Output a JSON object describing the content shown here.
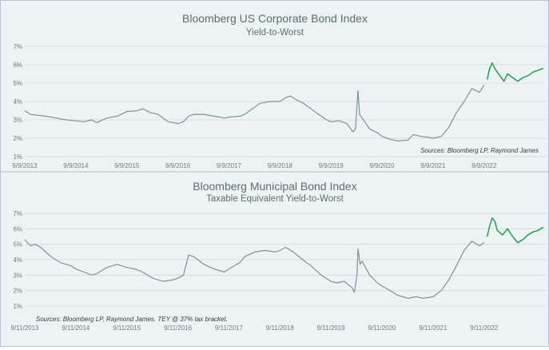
{
  "chart_data": [
    {
      "type": "line",
      "title": "Bloomberg US Corporate Bond Index",
      "subtitle": "Yield-to-Worst",
      "source": "Sources: Bloomberg LP, Raymond James",
      "y_ticks": [
        "1%",
        "2%",
        "3%",
        "4%",
        "5%",
        "6%",
        "7%"
      ],
      "ylim": [
        1,
        7
      ],
      "x_tick_labels": [
        "9/9/2013",
        "9/9/2014",
        "9/9/2015",
        "9/9/2016",
        "9/9/2017",
        "9/9/2018",
        "9/9/2019",
        "9/9/2020",
        "9/9/2021",
        "9/9/2022"
      ],
      "xlim": [
        2013.69,
        2023.9
      ],
      "grid": true,
      "colors": {
        "main": "#7b9498",
        "recent": "#16a34a"
      },
      "series": [
        {
          "values": [
            [
              2013.69,
              3.5
            ],
            [
              2013.8,
              3.3
            ],
            [
              2013.95,
              3.25
            ],
            [
              2014.1,
              3.2
            ],
            [
              2014.3,
              3.1
            ],
            [
              2014.5,
              3.0
            ],
            [
              2014.69,
              2.95
            ],
            [
              2014.85,
              2.9
            ],
            [
              2015.0,
              3.0
            ],
            [
              2015.1,
              2.85
            ],
            [
              2015.3,
              3.1
            ],
            [
              2015.5,
              3.2
            ],
            [
              2015.69,
              3.45
            ],
            [
              2015.9,
              3.5
            ],
            [
              2016.0,
              3.6
            ],
            [
              2016.15,
              3.4
            ],
            [
              2016.3,
              3.3
            ],
            [
              2016.5,
              2.9
            ],
            [
              2016.69,
              2.8
            ],
            [
              2016.8,
              2.9
            ],
            [
              2016.9,
              3.2
            ],
            [
              2017.0,
              3.3
            ],
            [
              2017.2,
              3.3
            ],
            [
              2017.4,
              3.2
            ],
            [
              2017.6,
              3.1
            ],
            [
              2017.69,
              3.15
            ],
            [
              2017.9,
              3.2
            ],
            [
              2018.0,
              3.3
            ],
            [
              2018.15,
              3.6
            ],
            [
              2018.3,
              3.9
            ],
            [
              2018.5,
              4.0
            ],
            [
              2018.69,
              4.0
            ],
            [
              2018.8,
              4.2
            ],
            [
              2018.9,
              4.3
            ],
            [
              2019.0,
              4.1
            ],
            [
              2019.15,
              3.9
            ],
            [
              2019.3,
              3.6
            ],
            [
              2019.45,
              3.3
            ],
            [
              2019.6,
              3.0
            ],
            [
              2019.69,
              2.9
            ],
            [
              2019.85,
              2.95
            ],
            [
              2020.0,
              2.8
            ],
            [
              2020.12,
              2.35
            ],
            [
              2020.17,
              2.5
            ],
            [
              2020.22,
              4.6
            ],
            [
              2020.25,
              3.3
            ],
            [
              2020.35,
              2.9
            ],
            [
              2020.45,
              2.5
            ],
            [
              2020.6,
              2.3
            ],
            [
              2020.69,
              2.1
            ],
            [
              2020.85,
              1.95
            ],
            [
              2021.0,
              1.85
            ],
            [
              2021.2,
              1.9
            ],
            [
              2021.3,
              2.2
            ],
            [
              2021.45,
              2.1
            ],
            [
              2021.6,
              2.05
            ],
            [
              2021.69,
              2.0
            ],
            [
              2021.85,
              2.1
            ],
            [
              2022.0,
              2.6
            ],
            [
              2022.15,
              3.4
            ],
            [
              2022.3,
              4.0
            ],
            [
              2022.45,
              4.7
            ],
            [
              2022.6,
              4.5
            ],
            [
              2022.69,
              4.9
            ]
          ]
        },
        {
          "values": [
            [
              2022.75,
              5.2
            ],
            [
              2022.8,
              5.8
            ],
            [
              2022.85,
              6.1
            ],
            [
              2022.9,
              5.8
            ],
            [
              2023.0,
              5.4
            ],
            [
              2023.08,
              5.1
            ],
            [
              2023.15,
              5.5
            ],
            [
              2023.25,
              5.3
            ],
            [
              2023.35,
              5.1
            ],
            [
              2023.45,
              5.3
            ],
            [
              2023.55,
              5.4
            ],
            [
              2023.65,
              5.6
            ],
            [
              2023.75,
              5.7
            ],
            [
              2023.85,
              5.8
            ]
          ]
        }
      ]
    },
    {
      "type": "line",
      "title": "Bloomberg Municipal Bond Index",
      "subtitle": "Taxable Equivalent Yield-to-Worst",
      "source": "Sources: Bloomberg LP, Raymond James. TEY @ 37% tax bracket.",
      "y_ticks": [
        "1%",
        "2%",
        "3%",
        "4%",
        "5%",
        "6%",
        "7%"
      ],
      "ylim": [
        1,
        7
      ],
      "x_tick_labels": [
        "9/11/2013",
        "9/11/2014",
        "9/11/2015",
        "9/11/2016",
        "9/11/2017",
        "9/11/2018",
        "9/11/2019",
        "9/11/2020",
        "9/11/2021",
        "9/11/2022"
      ],
      "xlim": [
        2013.69,
        2023.9
      ],
      "grid": true,
      "colors": {
        "main": "#7b9498",
        "recent": "#16a34a"
      },
      "series": [
        {
          "values": [
            [
              2013.69,
              5.3
            ],
            [
              2013.8,
              4.9
            ],
            [
              2013.9,
              5.0
            ],
            [
              2014.0,
              4.8
            ],
            [
              2014.2,
              4.2
            ],
            [
              2014.4,
              3.8
            ],
            [
              2014.6,
              3.6
            ],
            [
              2014.69,
              3.4
            ],
            [
              2014.85,
              3.2
            ],
            [
              2015.0,
              3.0
            ],
            [
              2015.1,
              3.1
            ],
            [
              2015.3,
              3.5
            ],
            [
              2015.5,
              3.7
            ],
            [
              2015.69,
              3.5
            ],
            [
              2015.85,
              3.4
            ],
            [
              2016.0,
              3.2
            ],
            [
              2016.2,
              2.8
            ],
            [
              2016.4,
              2.6
            ],
            [
              2016.6,
              2.7
            ],
            [
              2016.69,
              2.8
            ],
            [
              2016.8,
              3.0
            ],
            [
              2016.9,
              4.3
            ],
            [
              2017.0,
              4.2
            ],
            [
              2017.2,
              3.7
            ],
            [
              2017.4,
              3.4
            ],
            [
              2017.6,
              3.2
            ],
            [
              2017.69,
              3.4
            ],
            [
              2017.9,
              3.8
            ],
            [
              2018.0,
              4.2
            ],
            [
              2018.2,
              4.5
            ],
            [
              2018.4,
              4.6
            ],
            [
              2018.6,
              4.5
            ],
            [
              2018.69,
              4.6
            ],
            [
              2018.8,
              4.8
            ],
            [
              2018.95,
              4.5
            ],
            [
              2019.1,
              4.1
            ],
            [
              2019.3,
              3.6
            ],
            [
              2019.5,
              3.0
            ],
            [
              2019.69,
              2.6
            ],
            [
              2019.8,
              2.5
            ],
            [
              2019.95,
              2.6
            ],
            [
              2020.1,
              2.2
            ],
            [
              2020.15,
              1.9
            ],
            [
              2020.2,
              3.0
            ],
            [
              2020.22,
              4.7
            ],
            [
              2020.26,
              3.7
            ],
            [
              2020.3,
              3.9
            ],
            [
              2020.45,
              3.0
            ],
            [
              2020.6,
              2.5
            ],
            [
              2020.69,
              2.3
            ],
            [
              2020.85,
              2.0
            ],
            [
              2021.0,
              1.7
            ],
            [
              2021.2,
              1.5
            ],
            [
              2021.35,
              1.6
            ],
            [
              2021.5,
              1.5
            ],
            [
              2021.69,
              1.6
            ],
            [
              2021.85,
              2.0
            ],
            [
              2022.0,
              2.7
            ],
            [
              2022.15,
              3.6
            ],
            [
              2022.3,
              4.6
            ],
            [
              2022.45,
              5.2
            ],
            [
              2022.6,
              4.9
            ],
            [
              2022.69,
              5.1
            ]
          ]
        },
        {
          "values": [
            [
              2022.75,
              5.5
            ],
            [
              2022.8,
              6.2
            ],
            [
              2022.85,
              6.7
            ],
            [
              2022.9,
              6.5
            ],
            [
              2022.95,
              5.9
            ],
            [
              2023.05,
              5.6
            ],
            [
              2023.15,
              6.0
            ],
            [
              2023.25,
              5.5
            ],
            [
              2023.35,
              5.1
            ],
            [
              2023.45,
              5.3
            ],
            [
              2023.55,
              5.6
            ],
            [
              2023.65,
              5.8
            ],
            [
              2023.75,
              5.9
            ],
            [
              2023.85,
              6.1
            ]
          ]
        }
      ]
    }
  ]
}
